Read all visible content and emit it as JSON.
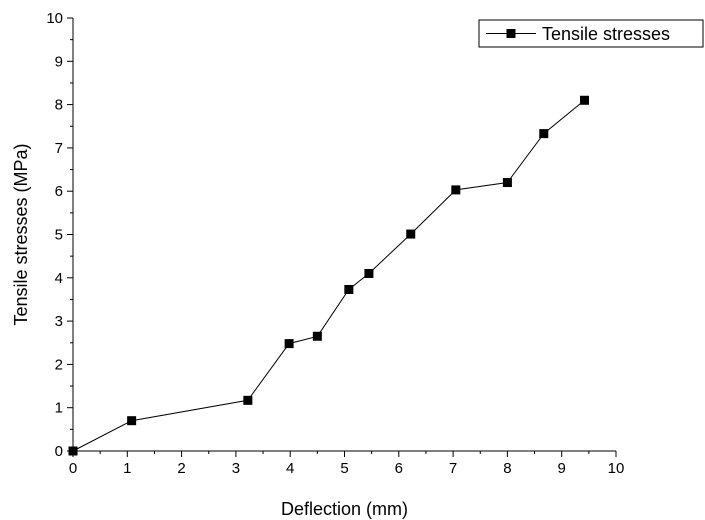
{
  "chart_data": {
    "type": "line",
    "title": "",
    "xlabel": "Deflection (mm)",
    "ylabel": "Tensile stresses (MPa)",
    "xlim": [
      0,
      10
    ],
    "ylim": [
      0,
      10
    ],
    "xticks": [
      0,
      1,
      2,
      3,
      4,
      5,
      6,
      7,
      8,
      9,
      10
    ],
    "yticks": [
      0,
      1,
      2,
      3,
      4,
      5,
      6,
      7,
      8,
      9,
      10
    ],
    "grid": false,
    "legend_position": "top-right",
    "series": [
      {
        "name": "Tensile stresses",
        "color": "#000000",
        "marker": "square",
        "x": [
          0,
          1.08,
          3.22,
          3.98,
          4.5,
          5.08,
          5.45,
          6.22,
          7.05,
          8.0,
          8.67,
          9.42
        ],
        "y": [
          0,
          0.7,
          1.17,
          2.48,
          2.65,
          3.73,
          4.1,
          5.01,
          6.03,
          6.2,
          7.33,
          8.1
        ]
      }
    ]
  }
}
